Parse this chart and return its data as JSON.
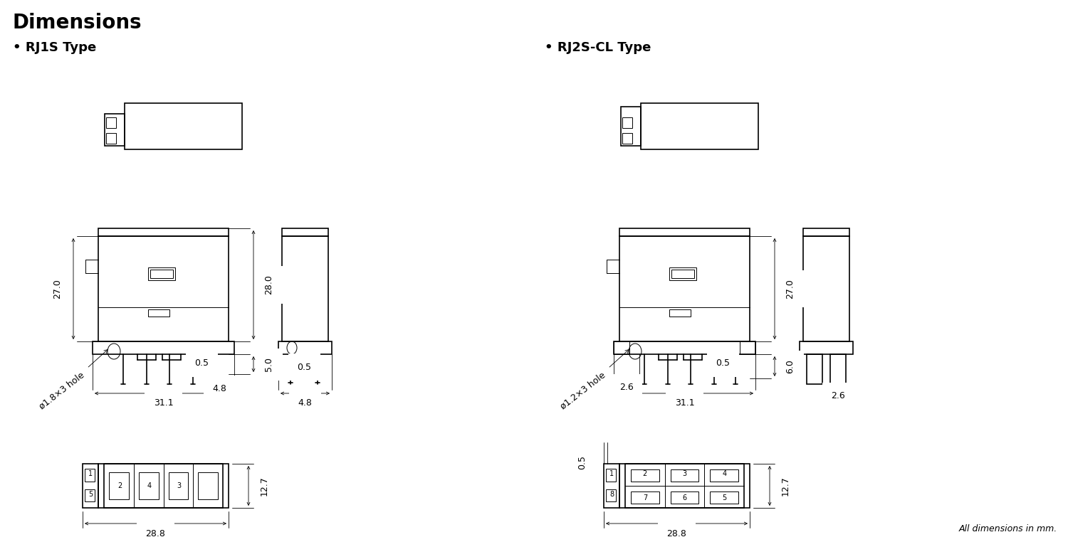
{
  "title": "Dimensions",
  "rj1s_label": "• RJ1S Type",
  "rj2s_label": "• RJ2S-CL Type",
  "footer": "All dimensions in mm.",
  "bg": "#ffffff",
  "lc": "#000000"
}
